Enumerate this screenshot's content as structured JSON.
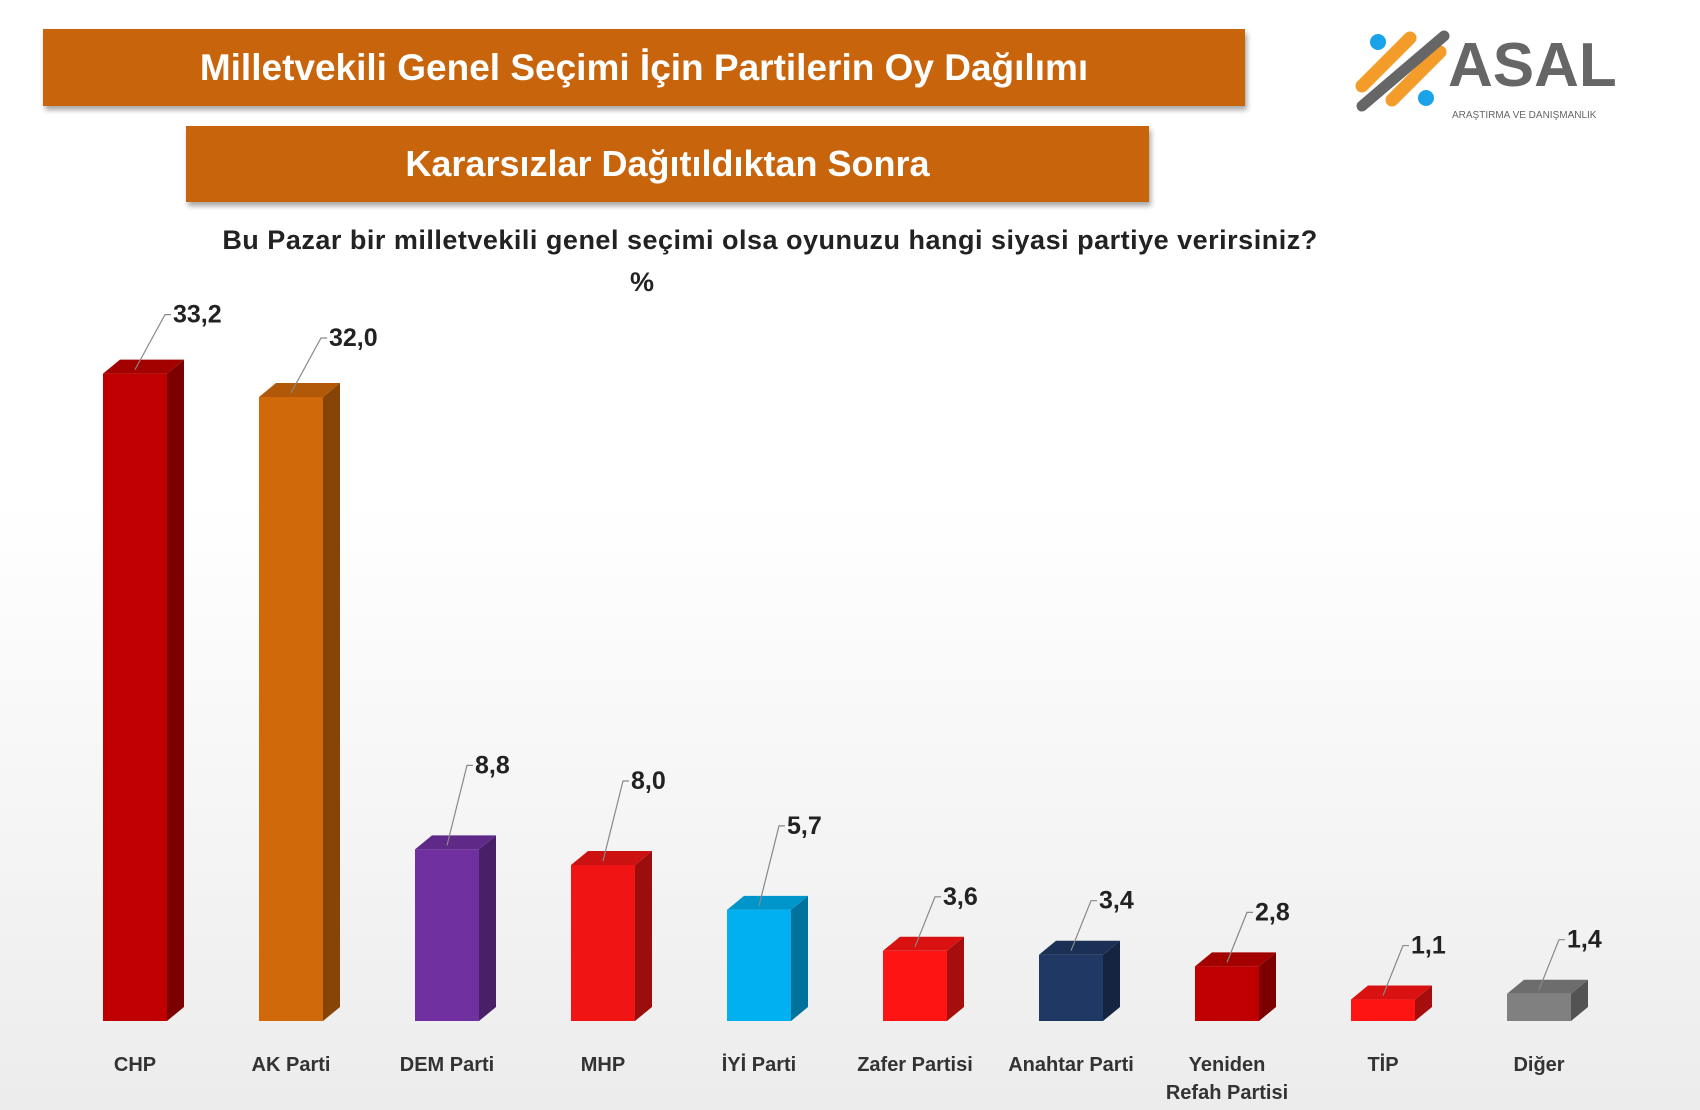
{
  "header": {
    "title": "Milletvekili Genel Seçimi İçin Partilerin Oy Dağılımı",
    "subtitle": "Kararsızlar Dağıtıldıktan Sonra",
    "question": "Bu Pazar bir milletvekili genel seçimi olsa oyunuzu hangi siyasi partiye verirsiniz?",
    "unit": "%"
  },
  "logo": {
    "name": "ASAL",
    "tagline": "ARAŞTIRMA VE DANIŞMANLIK"
  },
  "chart_data": {
    "type": "bar",
    "title": "Milletvekili Genel Seçimi İçin Partilerin Oy Dağılımı",
    "subtitle": "Kararsızlar Dağıtıldıktan Sonra",
    "ylabel": "%",
    "ylim": [
      0,
      35
    ],
    "grid": false,
    "categories": [
      "CHP",
      "AK Parti",
      "DEM Parti",
      "MHP",
      "İYİ Parti",
      "Zafer Partisi",
      "Anahtar Parti",
      "Yeniden Refah Partisi",
      "TİP",
      "Diğer"
    ],
    "category_lines": [
      [
        "CHP"
      ],
      [
        "AK Parti"
      ],
      [
        "DEM Parti"
      ],
      [
        "MHP"
      ],
      [
        "İYİ Parti"
      ],
      [
        "Zafer Partisi"
      ],
      [
        "Anahtar Parti"
      ],
      [
        "Yeniden",
        "Refah Partisi"
      ],
      [
        "TİP"
      ],
      [
        "Diğer"
      ]
    ],
    "values": [
      33.2,
      32.0,
      8.8,
      8.0,
      5.7,
      3.6,
      3.4,
      2.8,
      1.1,
      1.4
    ],
    "value_labels": [
      "33,2",
      "32,0",
      "8,8",
      "8,0",
      "5,7",
      "3,6",
      "3,4",
      "2,8",
      "1,1",
      "1,4"
    ],
    "colors": [
      "#c00000",
      "#d0690a",
      "#7030a0",
      "#f01414",
      "#00b0f0",
      "#ff1414",
      "#1f3864",
      "#c00000",
      "#ff1414",
      "#808080"
    ]
  }
}
